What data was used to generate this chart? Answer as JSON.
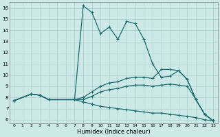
{
  "title": "",
  "xlabel": "Humidex (Indice chaleur)",
  "bg_color": "#cce9e8",
  "grid_color": "#aacfcf",
  "line_color": "#1a6b6b",
  "xlim": [
    -0.5,
    23.5
  ],
  "ylim": [
    5.7,
    16.5
  ],
  "xticks": [
    0,
    1,
    2,
    3,
    4,
    5,
    6,
    7,
    8,
    9,
    10,
    11,
    12,
    13,
    14,
    15,
    16,
    17,
    18,
    19,
    20,
    21,
    22,
    23
  ],
  "yticks": [
    6,
    7,
    8,
    9,
    10,
    11,
    12,
    13,
    14,
    15,
    16
  ],
  "lines": [
    {
      "x": [
        0,
        2,
        3,
        4,
        7,
        8,
        9,
        10,
        11,
        12,
        13,
        14,
        15,
        16,
        17,
        18,
        19,
        20,
        21,
        22,
        23
      ],
      "y": [
        7.7,
        8.3,
        8.2,
        7.8,
        7.8,
        16.2,
        15.6,
        13.7,
        14.3,
        13.2,
        14.8,
        14.6,
        13.2,
        11.0,
        9.8,
        9.9,
        10.4,
        9.6,
        7.8,
        6.5,
        5.9
      ]
    },
    {
      "x": [
        0,
        2,
        3,
        4,
        7,
        8,
        9,
        10,
        11,
        12,
        13,
        14,
        15,
        16,
        17,
        18,
        19,
        20,
        21,
        22,
        23
      ],
      "y": [
        7.7,
        8.3,
        8.2,
        7.8,
        7.8,
        8.0,
        8.5,
        9.0,
        9.3,
        9.4,
        9.7,
        9.8,
        9.8,
        9.7,
        10.5,
        10.5,
        10.4,
        9.6,
        7.8,
        6.5,
        5.9
      ]
    },
    {
      "x": [
        0,
        2,
        3,
        4,
        7,
        8,
        9,
        10,
        11,
        12,
        13,
        14,
        15,
        16,
        17,
        18,
        19,
        20,
        21,
        22,
        23
      ],
      "y": [
        7.7,
        8.3,
        8.2,
        7.8,
        7.8,
        7.8,
        8.1,
        8.5,
        8.7,
        8.8,
        9.0,
        9.1,
        9.1,
        9.0,
        9.1,
        9.2,
        9.1,
        9.0,
        7.8,
        6.5,
        5.9
      ]
    },
    {
      "x": [
        0,
        2,
        3,
        4,
        7,
        8,
        9,
        10,
        11,
        12,
        13,
        14,
        15,
        16,
        17,
        18,
        19,
        20,
        21,
        22,
        23
      ],
      "y": [
        7.7,
        8.3,
        8.2,
        7.8,
        7.8,
        7.6,
        7.4,
        7.2,
        7.1,
        7.0,
        6.9,
        6.8,
        6.7,
        6.6,
        6.6,
        6.5,
        6.4,
        6.3,
        6.2,
        6.0,
        5.9
      ]
    }
  ]
}
